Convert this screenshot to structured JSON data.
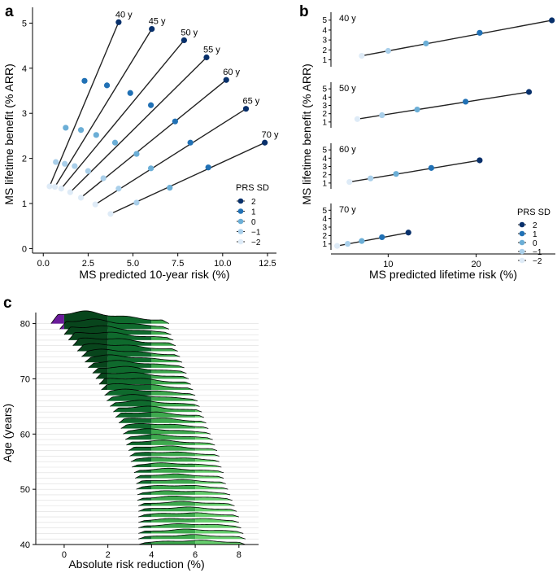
{
  "panel_labels": {
    "a": "a",
    "b": "b",
    "c": "c"
  },
  "colors": {
    "prs": [
      "#08306b",
      "#2171b5",
      "#6baed6",
      "#a9cfea",
      "#deebf7"
    ],
    "ridge_purple": "#6a1b9a",
    "ridge_greens": [
      "#08451c",
      "#0f6a2d",
      "#23883e",
      "#3ea94e",
      "#67cf6e"
    ]
  },
  "chart_data": [
    {
      "id": "a",
      "type": "scatter",
      "xlabel": "MS predicted 10-year risk (%)",
      "ylabel": "MS lifetime benefit (% ARR)",
      "xlim": [
        -0.6,
        13.0
      ],
      "ylim": [
        -0.1,
        5.35
      ],
      "xticks": [
        0.0,
        2.5,
        5.0,
        7.5,
        10.0,
        12.5
      ],
      "xtick_labels": [
        "0.0",
        "2.5",
        "5.0",
        "7.5",
        "10.0",
        "12.5"
      ],
      "yticks": [
        0,
        1,
        2,
        3,
        4,
        5
      ],
      "ytick_labels": [
        "0",
        "1",
        "2",
        "3",
        "4",
        "5"
      ],
      "legend": {
        "title": "PRS SD",
        "entries": [
          "2",
          "1",
          "0",
          "−1",
          "−2"
        ],
        "placement": "right"
      },
      "series": [
        {
          "name": "40 y",
          "x": [
            0.35,
            0.7,
            1.25,
            2.3,
            4.2
          ],
          "y": [
            1.38,
            1.92,
            2.68,
            3.72,
            5.02
          ]
        },
        {
          "name": "45 y",
          "x": [
            0.65,
            1.2,
            2.1,
            3.55,
            6.05
          ],
          "y": [
            1.37,
            1.88,
            2.63,
            3.62,
            4.87
          ]
        },
        {
          "name": "50 y",
          "x": [
            1.0,
            1.75,
            2.95,
            4.85,
            7.85
          ],
          "y": [
            1.33,
            1.83,
            2.52,
            3.45,
            4.62
          ]
        },
        {
          "name": "55 y",
          "x": [
            1.5,
            2.5,
            4.0,
            6.0,
            9.1
          ],
          "y": [
            1.25,
            1.72,
            2.35,
            3.18,
            4.24
          ]
        },
        {
          "name": "60 y",
          "x": [
            2.1,
            3.35,
            5.2,
            7.35,
            10.2
          ],
          "y": [
            1.13,
            1.56,
            2.1,
            2.82,
            3.74
          ]
        },
        {
          "name": "65 y",
          "x": [
            2.9,
            4.2,
            6.0,
            8.2,
            11.3
          ],
          "y": [
            0.98,
            1.33,
            1.78,
            2.35,
            3.1
          ]
        },
        {
          "name": "70 y",
          "x": [
            3.75,
            5.2,
            7.05,
            9.2,
            12.35
          ],
          "y": [
            0.77,
            1.02,
            1.35,
            1.8,
            2.35
          ]
        }
      ]
    },
    {
      "id": "b",
      "type": "scatter",
      "xlabel": "MS predicted lifetime risk (%)",
      "ylabel": "MS lifetime benefit (% ARR)",
      "xlim": [
        3.5,
        29.0
      ],
      "ylim": [
        0.3,
        5.8
      ],
      "xticks": [
        10,
        20
      ],
      "xtick_labels": [
        "10",
        "20"
      ],
      "yticks": [
        1,
        2,
        3,
        4,
        5
      ],
      "ytick_labels": [
        "1",
        "2",
        "3",
        "4",
        "5"
      ],
      "legend": {
        "title": "PRS SD",
        "entries": [
          "2",
          "1",
          "0",
          "−1",
          "−2"
        ],
        "placement": "bottom-right"
      },
      "series": [
        {
          "name": "40 y",
          "x": [
            7.0,
            10.0,
            14.3,
            20.4,
            28.6
          ],
          "y": [
            1.4,
            1.9,
            2.65,
            3.72,
            4.98
          ]
        },
        {
          "name": "50 y",
          "x": [
            6.5,
            9.3,
            13.3,
            18.8,
            26.0
          ],
          "y": [
            1.35,
            1.82,
            2.5,
            3.45,
            4.62
          ]
        },
        {
          "name": "60 y",
          "x": [
            5.6,
            8.0,
            10.9,
            14.9,
            20.4
          ],
          "y": [
            1.13,
            1.56,
            2.1,
            2.82,
            3.74
          ]
        },
        {
          "name": "70 y",
          "x": [
            4.2,
            5.4,
            7.0,
            9.3,
            12.3
          ],
          "y": [
            0.77,
            1.02,
            1.35,
            1.8,
            2.35
          ]
        }
      ]
    },
    {
      "id": "c",
      "type": "ridgeline",
      "xlabel": "Absolute risk reduction (%)",
      "ylabel": "Age (years)",
      "xlim": [
        -1.3,
        8.9
      ],
      "ylim": [
        40,
        82
      ],
      "xticks": [
        0,
        2,
        4,
        6,
        8
      ],
      "xtick_labels": [
        "0",
        "2",
        "4",
        "6",
        "8"
      ],
      "yticks": [
        40,
        50,
        60,
        70,
        80
      ],
      "ytick_labels": [
        "40",
        "50",
        "60",
        "70",
        "80"
      ],
      "ages_from": 40,
      "ages_to": 80,
      "ridge_start": [
        3.4,
        3.4,
        3.4,
        3.4,
        3.4,
        3.4,
        3.4,
        3.4,
        3.35,
        3.35,
        3.3,
        3.3,
        3.25,
        3.2,
        3.1,
        3.05,
        3.0,
        2.95,
        2.85,
        2.8,
        2.7,
        2.6,
        2.5,
        2.35,
        2.25,
        2.1,
        1.95,
        1.85,
        1.7,
        1.6,
        1.45,
        1.3,
        1.1,
        0.95,
        0.8,
        0.6,
        0.4,
        0.2,
        0.0,
        -0.2,
        -0.6
      ],
      "ridge_end": [
        8.3,
        8.3,
        8.2,
        8.1,
        8.0,
        8.0,
        7.9,
        7.8,
        7.7,
        7.6,
        7.5,
        7.4,
        7.3,
        7.3,
        7.2,
        7.1,
        7.1,
        7.0,
        6.9,
        6.8,
        6.7,
        6.6,
        6.5,
        6.4,
        6.3,
        6.2,
        6.1,
        6.0,
        5.9,
        5.8,
        5.7,
        5.6,
        5.5,
        5.4,
        5.3,
        5.2,
        5.1,
        5.0,
        4.9,
        4.8,
        4.8
      ],
      "ridge_peak": [
        5.9,
        5.8,
        5.75,
        5.7,
        5.6,
        5.5,
        5.45,
        5.4,
        5.3,
        5.2,
        5.1,
        5.0,
        4.9,
        4.85,
        4.75,
        4.65,
        4.55,
        4.45,
        4.35,
        4.25,
        4.1,
        4.0,
        3.85,
        3.7,
        3.55,
        3.4,
        3.25,
        3.1,
        2.95,
        2.8,
        2.6,
        2.45,
        2.3,
        2.1,
        1.95,
        1.8,
        1.6,
        1.4,
        1.2,
        1.0,
        0.7
      ],
      "ridge_height_rows": [
        0.9,
        0.9,
        0.9,
        0.9,
        0.9,
        0.9,
        0.9,
        0.9,
        0.9,
        0.9,
        0.9,
        0.9,
        0.9,
        0.9,
        0.9,
        0.95,
        0.95,
        1.0,
        1.0,
        1.05,
        1.1,
        1.1,
        1.15,
        1.2,
        1.2,
        1.25,
        1.3,
        1.3,
        1.35,
        1.4,
        1.4,
        1.45,
        1.5,
        1.5,
        1.55,
        1.6,
        1.7,
        1.8,
        1.9,
        2.1,
        2.6
      ],
      "band_edges": [
        2,
        4,
        6
      ]
    }
  ]
}
